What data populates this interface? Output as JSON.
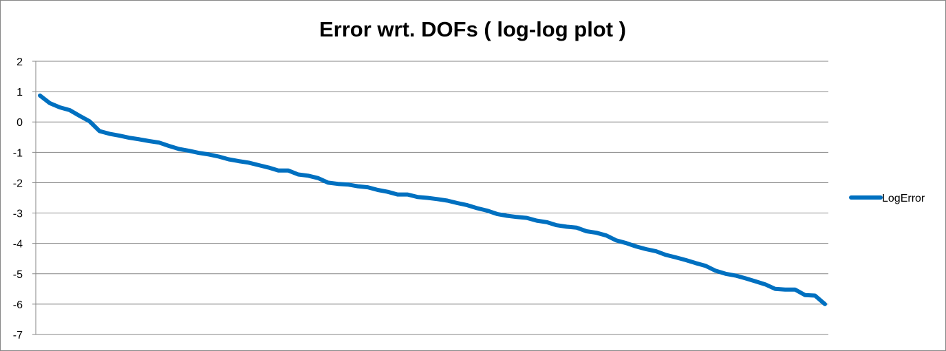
{
  "chart_data": {
    "type": "line",
    "title": "Error wrt. DOFs  ( log-log plot )",
    "xlabel": "",
    "ylabel": "",
    "ylim": [
      -7,
      2
    ],
    "y_ticks": [
      2,
      1,
      0,
      -1,
      -2,
      -3,
      -4,
      -5,
      -6,
      -7
    ],
    "grid": true,
    "legend_position": "right",
    "series_color": "#0070C0",
    "series": [
      {
        "name": "LogError",
        "values": [
          0.87,
          0.62,
          0.48,
          0.39,
          0.2,
          0.02,
          -0.3,
          -0.39,
          -0.45,
          -0.52,
          -0.57,
          -0.63,
          -0.68,
          -0.79,
          -0.89,
          -0.95,
          -1.02,
          -1.07,
          -1.14,
          -1.23,
          -1.29,
          -1.34,
          -1.42,
          -1.5,
          -1.6,
          -1.6,
          -1.73,
          -1.77,
          -1.85,
          -2.0,
          -2.04,
          -2.06,
          -2.12,
          -2.15,
          -2.24,
          -2.3,
          -2.39,
          -2.39,
          -2.47,
          -2.5,
          -2.54,
          -2.59,
          -2.67,
          -2.74,
          -2.84,
          -2.92,
          -3.03,
          -3.09,
          -3.13,
          -3.16,
          -3.25,
          -3.3,
          -3.4,
          -3.45,
          -3.48,
          -3.6,
          -3.65,
          -3.74,
          -3.9,
          -3.99,
          -4.1,
          -4.19,
          -4.26,
          -4.38,
          -4.46,
          -4.55,
          -4.65,
          -4.74,
          -4.9,
          -5.0,
          -5.06,
          -5.15,
          -5.25,
          -5.35,
          -5.5,
          -5.52,
          -5.52,
          -5.7,
          -5.72,
          -6.0
        ]
      }
    ]
  }
}
